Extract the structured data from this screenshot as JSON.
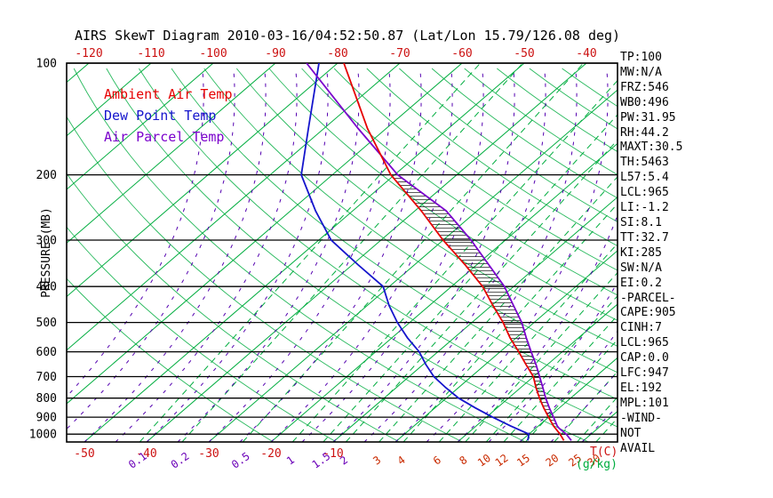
{
  "title": "AIRS SkewT Diagram 2010-03-16/04:52:50.87 (Lat/Lon 15.79/126.08 deg)",
  "stats_panel": {
    "items": [
      "TP:100",
      "MW:N/A",
      "FRZ:546",
      "WB0:496",
      "PW:31.95",
      "RH:44.2",
      "MAXT:30.5",
      "TH:5463",
      "L57:5.4",
      "LCL:965",
      "LI:-1.2",
      "SI:8.1",
      "TT:32.7",
      "KI:285",
      "SW:N/A",
      "EI:0.2",
      "-PARCEL-",
      "CAPE:905",
      "CINH:7",
      "LCL:965",
      "CAP:0.0",
      "LFC:947",
      "EL:192",
      "MPL:101",
      "-WIND-",
      "NOT",
      "AVAIL"
    ]
  },
  "chart_data": {
    "type": "skewt",
    "title": "AIRS SkewT Diagram 2010-03-16/04:52:50.87 (Lat/Lon 15.79/126.08 deg)",
    "ylabel": "PRESSURE (MB)",
    "xlabel_temp": "T(C)",
    "xlabel_mixing": "(g/kg)",
    "temp_label_color": "#cc1111",
    "pressure_range": [
      100,
      1050
    ],
    "pressure_ticks": [
      100,
      200,
      300,
      400,
      500,
      600,
      700,
      800,
      900,
      1000
    ],
    "top_temp_labels": [
      -120,
      -110,
      -100,
      -90,
      -80,
      -70,
      -60,
      -50,
      -40
    ],
    "bottom_temp_labels": [
      -50,
      -40,
      -30,
      -20,
      -10
    ],
    "isotherms": {
      "min": -130,
      "max": 40,
      "step": 10,
      "color": "#00ad3f"
    },
    "dry_adiabats": {
      "min_k": 250,
      "max_k": 440,
      "step_k": 10,
      "color": "#00ad3f"
    },
    "mixing_ratio": {
      "values": [
        0.1,
        0.2,
        0.5,
        1,
        1.5,
        2,
        3,
        4,
        6,
        8,
        10,
        12,
        15,
        20,
        25,
        30
      ],
      "slope": 0.9,
      "color": "#00ad3f",
      "label_color_small": "#6a00b8",
      "label_color_large": "#c92a00"
    },
    "moist_adiabats": {
      "min": -60,
      "max": 30,
      "step": 5,
      "color": "#5502b0"
    },
    "legend": [
      {
        "label": "Ambient Air Temp",
        "color": "#e60000"
      },
      {
        "label": "Dew Point Temp",
        "color": "#1515cc"
      },
      {
        "label": "Air Parcel Temp",
        "color": "#7a00cc"
      }
    ],
    "series": [
      {
        "name": "ambient",
        "color": "#e60000",
        "points": [
          [
            1040,
            26.8
          ],
          [
            1000,
            25
          ],
          [
            950,
            22.4
          ],
          [
            900,
            20
          ],
          [
            850,
            17.5
          ],
          [
            800,
            15
          ],
          [
            750,
            12.5
          ],
          [
            700,
            10
          ],
          [
            650,
            6.6
          ],
          [
            600,
            3
          ],
          [
            550,
            -1
          ],
          [
            500,
            -5
          ],
          [
            450,
            -9.8
          ],
          [
            400,
            -15
          ],
          [
            350,
            -21.8
          ],
          [
            300,
            -30
          ],
          [
            250,
            -39
          ],
          [
            200,
            -50.6
          ],
          [
            150,
            -63
          ],
          [
            100,
            -79
          ]
        ]
      },
      {
        "name": "dewpoint",
        "color": "#1515cc",
        "points": [
          [
            1040,
            21
          ],
          [
            1000,
            20
          ],
          [
            950,
            15.5
          ],
          [
            900,
            11
          ],
          [
            850,
            6.5
          ],
          [
            800,
            2
          ],
          [
            750,
            -2
          ],
          [
            700,
            -6
          ],
          [
            650,
            -9.5
          ],
          [
            600,
            -13
          ],
          [
            550,
            -17.5
          ],
          [
            500,
            -22
          ],
          [
            450,
            -26.5
          ],
          [
            400,
            -31
          ],
          [
            350,
            -39
          ],
          [
            300,
            -48
          ],
          [
            250,
            -56
          ],
          [
            200,
            -65
          ],
          [
            150,
            -72.5
          ],
          [
            100,
            -83
          ]
        ]
      },
      {
        "name": "parcel",
        "color": "#7a00cc",
        "points": [
          [
            1040,
            28
          ],
          [
            1000,
            26
          ],
          [
            965,
            23.8
          ],
          [
            950,
            23
          ],
          [
            900,
            20.8
          ],
          [
            850,
            18.4
          ],
          [
            800,
            16
          ],
          [
            750,
            13.6
          ],
          [
            700,
            11
          ],
          [
            650,
            8.2
          ],
          [
            600,
            5
          ],
          [
            550,
            1.6
          ],
          [
            500,
            -2
          ],
          [
            450,
            -6.5
          ],
          [
            400,
            -11.5
          ],
          [
            350,
            -18
          ],
          [
            300,
            -25.5
          ],
          [
            250,
            -35
          ],
          [
            200,
            -49.5
          ],
          [
            150,
            -64.5
          ],
          [
            100,
            -85
          ]
        ]
      }
    ],
    "hatch": {
      "p_top": 200,
      "p_bottom": 947,
      "color": "#222222"
    }
  }
}
